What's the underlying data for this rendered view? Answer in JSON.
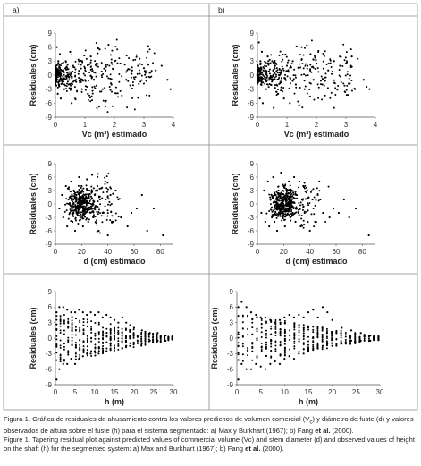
{
  "panel_labels": [
    "a)",
    "b)"
  ],
  "caption": {
    "es": {
      "label": "Figura 1.",
      "text_1": "Gráfica de residuales de ahusamiento contra los valores predichos de volumen comercial (V",
      "sub": "c",
      "text_2": ") y diámetro de fuste (d) y valores observados de altura sobre el fuste (h) para el sistema segmentado: a) Max y Burkhart (1967); b) Fang ",
      "bold": "et al.",
      "text_3": " (2000)."
    },
    "en": {
      "label": "Figure 1.",
      "text_1": "Tapering residual plot against predicted values of commercial volume (Vc) and stem diameter (d) and observed values of height on the shaft (h) for the segmented system: a) Max and Burkhart (1967); b) Fang ",
      "bold": "et al.",
      "text_3": " (2000)."
    }
  },
  "colors": {
    "points": "#000000",
    "border": "#888888",
    "background": "#ffffff"
  },
  "chart_data": [
    {
      "type": "scatter",
      "panel": "a)",
      "row": 1,
      "title": "",
      "xlabel": "Vc (m³) estimado",
      "ylabel": "Residuales (cm)",
      "xlim": [
        0,
        4
      ],
      "ylim": [
        -9,
        9
      ],
      "xticks": [
        "0",
        "1",
        "2",
        "3",
        "4"
      ],
      "yticks": [
        "9",
        "6",
        "3",
        "0",
        "-3",
        "-6",
        "-9"
      ],
      "points": [
        [
          0.05,
          6
        ],
        [
          0.08,
          -4
        ],
        [
          0.1,
          3
        ],
        [
          0.12,
          -2
        ],
        [
          0.15,
          4.5
        ],
        [
          0.18,
          -5
        ],
        [
          0.2,
          1
        ],
        [
          0.22,
          -1
        ],
        [
          0.25,
          2.5
        ],
        [
          0.3,
          -3
        ],
        [
          0.35,
          3
        ],
        [
          0.4,
          0.5
        ],
        [
          0.45,
          -2
        ],
        [
          0.5,
          5
        ],
        [
          0.55,
          -6
        ],
        [
          0.6,
          2
        ],
        [
          0.7,
          -1
        ],
        [
          0.8,
          3
        ],
        [
          0.9,
          -3
        ],
        [
          1.0,
          1.5
        ],
        [
          1.1,
          -4
        ],
        [
          1.2,
          4
        ],
        [
          1.3,
          -1
        ],
        [
          1.4,
          2
        ],
        [
          1.5,
          5.5
        ],
        [
          1.6,
          -3
        ],
        [
          1.7,
          1
        ],
        [
          1.8,
          6.5
        ],
        [
          1.9,
          -2
        ],
        [
          2.0,
          3
        ],
        [
          2.2,
          2.5
        ],
        [
          2.4,
          -1
        ],
        [
          2.6,
          1
        ],
        [
          2.8,
          2
        ],
        [
          3.0,
          1.5
        ],
        [
          3.2,
          0.5
        ],
        [
          3.4,
          1
        ],
        [
          3.6,
          2
        ],
        [
          3.8,
          -1
        ],
        [
          3.9,
          -3
        ]
      ]
    },
    {
      "type": "scatter",
      "panel": "b)",
      "row": 1,
      "title": "",
      "xlabel": "Vc (m³) estimado",
      "ylabel": "Residuales (cm)",
      "xlim": [
        0,
        4
      ],
      "ylim": [
        -9,
        9
      ],
      "xticks": [
        "0",
        "1",
        "2",
        "3",
        "4"
      ],
      "yticks": [
        "9",
        "6",
        "3",
        "0",
        "-3",
        "-6",
        "-9"
      ],
      "points": [
        [
          0.05,
          7
        ],
        [
          0.08,
          -5
        ],
        [
          0.1,
          3
        ],
        [
          0.12,
          -2
        ],
        [
          0.15,
          5
        ],
        [
          0.18,
          -6
        ],
        [
          0.2,
          1
        ],
        [
          0.25,
          2
        ],
        [
          0.3,
          -3
        ],
        [
          0.35,
          4
        ],
        [
          0.4,
          -1
        ],
        [
          0.5,
          3
        ],
        [
          0.55,
          -7
        ],
        [
          0.6,
          2
        ],
        [
          0.7,
          -4
        ],
        [
          0.8,
          1
        ],
        [
          0.9,
          -5
        ],
        [
          1.0,
          2
        ],
        [
          1.1,
          -6
        ],
        [
          1.2,
          3
        ],
        [
          1.3,
          -2
        ],
        [
          1.4,
          1.5
        ],
        [
          1.5,
          6
        ],
        [
          1.6,
          -3
        ],
        [
          1.7,
          2
        ],
        [
          1.8,
          4.5
        ],
        [
          1.9,
          -1
        ],
        [
          2.0,
          2.5
        ],
        [
          2.2,
          -2
        ],
        [
          2.4,
          1
        ],
        [
          2.6,
          3
        ],
        [
          2.8,
          2
        ],
        [
          3.0,
          2.5
        ],
        [
          3.2,
          4
        ],
        [
          3.4,
          3.5
        ],
        [
          3.6,
          -1
        ],
        [
          3.7,
          -2.5
        ],
        [
          3.8,
          -3
        ]
      ]
    },
    {
      "type": "scatter",
      "panel": "a)",
      "row": 2,
      "title": "",
      "xlabel": "d (cm) estimado",
      "ylabel": "Residuales (cm)",
      "xlim": [
        0,
        90
      ],
      "ylim": [
        -9,
        9
      ],
      "xticks": [
        "0",
        "20",
        "40",
        "60",
        "80"
      ],
      "yticks": [
        "9",
        "6",
        "3",
        "0",
        "-3",
        "-6",
        "-9"
      ],
      "points": [
        [
          3,
          -1
        ],
        [
          5,
          2
        ],
        [
          6,
          -3
        ],
        [
          8,
          4
        ],
        [
          9,
          -5
        ],
        [
          10,
          1
        ],
        [
          11,
          -2
        ],
        [
          12,
          5
        ],
        [
          13,
          -4
        ],
        [
          14,
          3
        ],
        [
          15,
          -6
        ],
        [
          16,
          2
        ],
        [
          17,
          -1
        ],
        [
          18,
          6
        ],
        [
          19,
          -3
        ],
        [
          20,
          4
        ],
        [
          21,
          -5
        ],
        [
          22,
          1
        ],
        [
          23,
          -2
        ],
        [
          24,
          5.5
        ],
        [
          25,
          -4
        ],
        [
          26,
          3
        ],
        [
          27,
          -1
        ],
        [
          28,
          6.5
        ],
        [
          29,
          -3
        ],
        [
          30,
          2
        ],
        [
          32,
          4
        ],
        [
          33,
          -6
        ],
        [
          34,
          1
        ],
        [
          35,
          3.5
        ],
        [
          36,
          -2
        ],
        [
          38,
          5
        ],
        [
          40,
          -7
        ],
        [
          42,
          2
        ],
        [
          44,
          -4
        ],
        [
          46,
          3
        ],
        [
          48,
          1
        ],
        [
          50,
          -3
        ],
        [
          55,
          -5
        ],
        [
          58,
          -2
        ],
        [
          62,
          -1
        ],
        [
          66,
          2
        ],
        [
          70,
          -6
        ],
        [
          75,
          -1
        ],
        [
          82,
          -7
        ]
      ]
    },
    {
      "type": "scatter",
      "panel": "b)",
      "row": 2,
      "title": "",
      "xlabel": "d (cm) estimado",
      "ylabel": "Residuales (cm)",
      "xlim": [
        0,
        90
      ],
      "ylim": [
        -9,
        9
      ],
      "xticks": [
        "0",
        "20",
        "40",
        "60",
        "80"
      ],
      "yticks": [
        "9",
        "6",
        "3",
        "0",
        "-3",
        "-6",
        "-9"
      ],
      "points": [
        [
          3,
          -2
        ],
        [
          5,
          3
        ],
        [
          6,
          -4
        ],
        [
          8,
          5
        ],
        [
          9,
          -5
        ],
        [
          10,
          1
        ],
        [
          11,
          -3
        ],
        [
          12,
          6
        ],
        [
          13,
          -4
        ],
        [
          14,
          2
        ],
        [
          15,
          -6
        ],
        [
          16,
          3
        ],
        [
          17,
          -2
        ],
        [
          18,
          7
        ],
        [
          19,
          -3
        ],
        [
          20,
          4
        ],
        [
          21,
          -5
        ],
        [
          22,
          2
        ],
        [
          23,
          -1
        ],
        [
          24,
          5
        ],
        [
          25,
          -3
        ],
        [
          26,
          3
        ],
        [
          27,
          -2
        ],
        [
          28,
          6
        ],
        [
          29,
          -4
        ],
        [
          30,
          2
        ],
        [
          32,
          5
        ],
        [
          33,
          -5
        ],
        [
          34,
          1
        ],
        [
          35,
          4
        ],
        [
          36,
          -2
        ],
        [
          38,
          3
        ],
        [
          40,
          -6
        ],
        [
          42,
          1
        ],
        [
          44,
          -4
        ],
        [
          46,
          2
        ],
        [
          48,
          1
        ],
        [
          50,
          -2
        ],
        [
          55,
          -3
        ],
        [
          58,
          -1
        ],
        [
          62,
          -2
        ],
        [
          66,
          1
        ],
        [
          70,
          -3
        ],
        [
          75,
          -1
        ],
        [
          85,
          -7
        ]
      ]
    },
    {
      "type": "scatter",
      "panel": "a)",
      "row": 3,
      "title": "",
      "xlabel": "h (m)",
      "ylabel": "Residuales (cm)",
      "xlim": [
        0,
        30
      ],
      "ylim": [
        -9,
        9
      ],
      "xticks": [
        "0",
        "5",
        "10",
        "15",
        "20",
        "25",
        "30"
      ],
      "yticks": [
        "9",
        "6",
        "3",
        "0",
        "-3",
        "-6",
        "-9"
      ],
      "points": [
        [
          0.3,
          -8
        ],
        [
          0.3,
          5
        ],
        [
          1,
          6
        ],
        [
          1,
          -6
        ],
        [
          2,
          6
        ],
        [
          2,
          -5
        ],
        [
          3,
          5.5
        ],
        [
          3,
          -5
        ],
        [
          4,
          5
        ],
        [
          4,
          -4
        ],
        [
          5,
          5
        ],
        [
          5,
          -5
        ],
        [
          6,
          5.5
        ],
        [
          6,
          -4
        ],
        [
          7,
          5
        ],
        [
          7,
          -3.5
        ],
        [
          8,
          4.5
        ],
        [
          8,
          -3
        ],
        [
          9,
          5
        ],
        [
          9,
          -3
        ],
        [
          10,
          4.5
        ],
        [
          10,
          -2.5
        ],
        [
          11,
          5
        ],
        [
          11,
          -3
        ],
        [
          12,
          4
        ],
        [
          12,
          -2
        ],
        [
          13,
          4.5
        ],
        [
          13,
          -2.5
        ],
        [
          14,
          4
        ],
        [
          14,
          -2
        ],
        [
          15,
          3.5
        ],
        [
          15,
          -2
        ],
        [
          16,
          3
        ],
        [
          16,
          -1.5
        ],
        [
          17,
          4
        ],
        [
          17,
          -2
        ],
        [
          18,
          3
        ],
        [
          18,
          -1.5
        ],
        [
          19,
          2.5
        ],
        [
          19,
          -1
        ],
        [
          20,
          2
        ],
        [
          20,
          -1
        ],
        [
          22,
          1.5
        ],
        [
          22,
          -1
        ],
        [
          24,
          1
        ],
        [
          24,
          -0.5
        ],
        [
          26,
          1
        ],
        [
          26,
          -0.5
        ],
        [
          28,
          0.5
        ],
        [
          28,
          -0.5
        ]
      ]
    },
    {
      "type": "scatter",
      "panel": "b)",
      "row": 3,
      "title": "",
      "xlabel": "h (m)",
      "ylabel": "Residuales (cm)",
      "xlim": [
        0,
        30
      ],
      "ylim": [
        -9,
        9
      ],
      "xticks": [
        "0",
        "5",
        "10",
        "15",
        "20",
        "25",
        "30"
      ],
      "yticks": [
        "9",
        "6",
        "3",
        "0",
        "-3",
        "-6",
        "-9"
      ],
      "points": [
        [
          0.3,
          -8
        ],
        [
          0.3,
          6
        ],
        [
          1,
          7
        ],
        [
          1,
          -5
        ],
        [
          2,
          6
        ],
        [
          2,
          -6
        ],
        [
          3,
          5
        ],
        [
          3,
          -6
        ],
        [
          4,
          4.5
        ],
        [
          4,
          -5
        ],
        [
          5,
          4
        ],
        [
          5,
          -5.5
        ],
        [
          6,
          4
        ],
        [
          6,
          -6
        ],
        [
          7,
          3.5
        ],
        [
          7,
          -5
        ],
        [
          8,
          3
        ],
        [
          8,
          -4.5
        ],
        [
          9,
          3.5
        ],
        [
          9,
          -5
        ],
        [
          10,
          4
        ],
        [
          10,
          -4
        ],
        [
          11,
          4.5
        ],
        [
          11,
          -3.5
        ],
        [
          12,
          4
        ],
        [
          12,
          -4
        ],
        [
          13,
          4.5
        ],
        [
          13,
          -3
        ],
        [
          14,
          4
        ],
        [
          14,
          -3
        ],
        [
          15,
          5
        ],
        [
          15,
          -2.5
        ],
        [
          16,
          5.5
        ],
        [
          16,
          -2
        ],
        [
          17,
          4
        ],
        [
          17,
          -2
        ],
        [
          18,
          6
        ],
        [
          18,
          -1.5
        ],
        [
          19,
          5
        ],
        [
          19,
          -1
        ],
        [
          20,
          3.5
        ],
        [
          20,
          -1.5
        ],
        [
          22,
          2
        ],
        [
          22,
          -1
        ],
        [
          24,
          1.5
        ],
        [
          24,
          -0.5
        ],
        [
          26,
          1
        ],
        [
          26,
          -0.5
        ],
        [
          28,
          0.5
        ],
        [
          28,
          -0.5
        ]
      ]
    }
  ]
}
